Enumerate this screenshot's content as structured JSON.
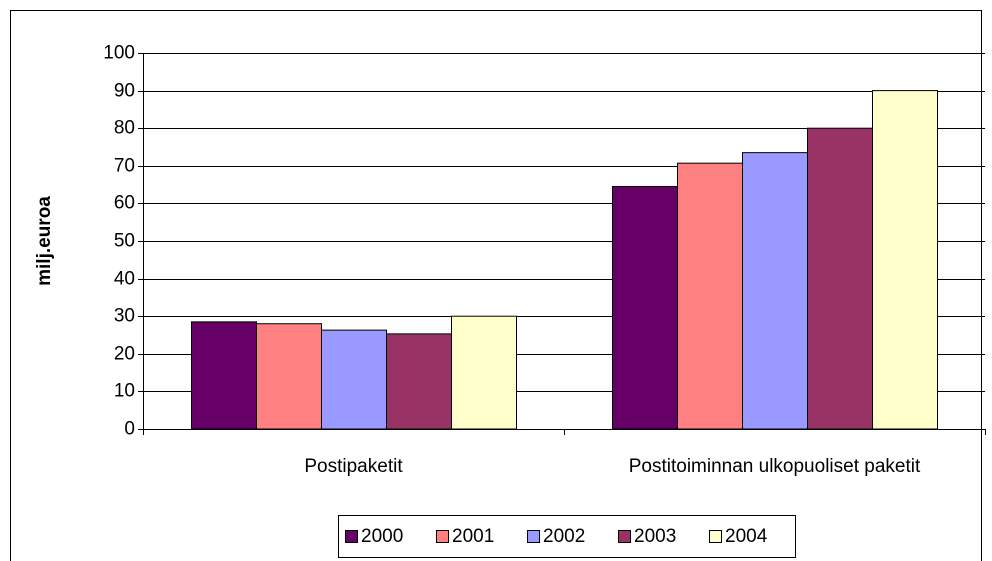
{
  "chart_data": {
    "type": "bar",
    "ylabel": "milj.euroa",
    "categories": [
      "Postipaketit",
      "Postitoiminnan ulkopuoliset paketit"
    ],
    "series": [
      {
        "name": "2000",
        "color": "#660066",
        "values": [
          28.5,
          64.5
        ]
      },
      {
        "name": "2001",
        "color": "#ff8080",
        "values": [
          28,
          70.7
        ]
      },
      {
        "name": "2002",
        "color": "#9999ff",
        "values": [
          26.3,
          73.5
        ]
      },
      {
        "name": "2003",
        "color": "#993366",
        "values": [
          25.3,
          80
        ]
      },
      {
        "name": "2004",
        "color": "#ffffcc",
        "values": [
          30,
          90
        ]
      }
    ],
    "ylim": [
      0,
      100
    ],
    "yticks": [
      0,
      10,
      20,
      30,
      40,
      50,
      60,
      70,
      80,
      90,
      100
    ],
    "grid": true,
    "legend": "bottom"
  }
}
